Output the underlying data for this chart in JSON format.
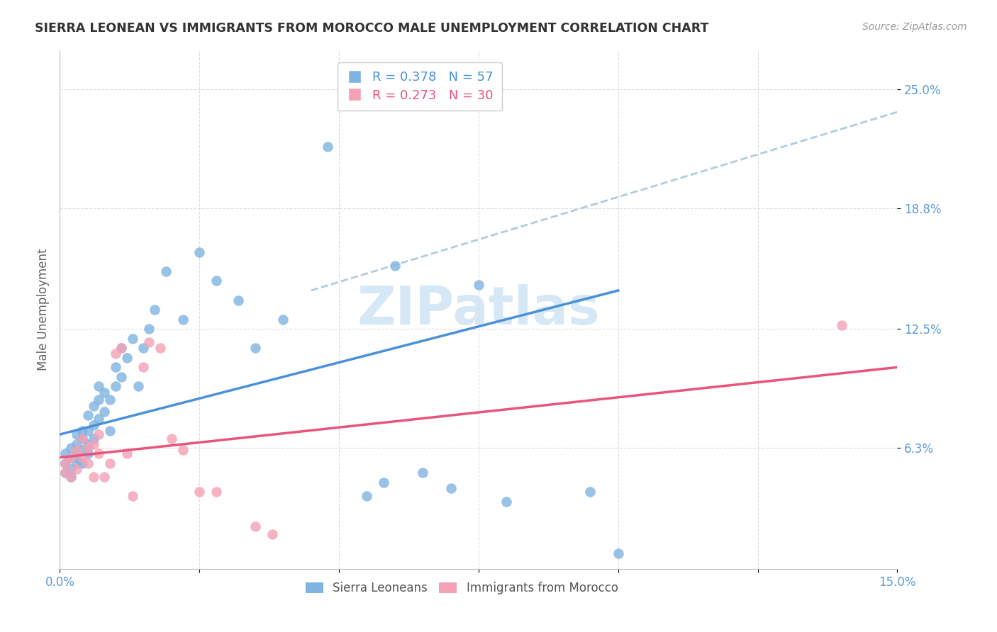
{
  "title": "SIERRA LEONEAN VS IMMIGRANTS FROM MOROCCO MALE UNEMPLOYMENT CORRELATION CHART",
  "source": "Source: ZipAtlas.com",
  "ylabel": "Male Unemployment",
  "ytick_labels": [
    "6.3%",
    "12.5%",
    "18.8%",
    "25.0%"
  ],
  "ytick_values": [
    0.063,
    0.125,
    0.188,
    0.25
  ],
  "xlim": [
    0.0,
    0.15
  ],
  "ylim": [
    0.0,
    0.27
  ],
  "color_blue": "#7EB4E2",
  "color_pink": "#F4A0B5",
  "color_trendline_blue": "#4A90D9",
  "color_trendline_pink": "#E8547A",
  "color_trendline_dashed": "#B0CCDD",
  "watermark_color": "#D6E8F5",
  "background_color": "#FFFFFF",
  "sl_x": [
    0.001,
    0.001,
    0.001,
    0.002,
    0.002,
    0.002,
    0.002,
    0.003,
    0.003,
    0.003,
    0.003,
    0.003,
    0.004,
    0.004,
    0.004,
    0.004,
    0.005,
    0.005,
    0.005,
    0.005,
    0.006,
    0.006,
    0.006,
    0.007,
    0.007,
    0.007,
    0.008,
    0.008,
    0.009,
    0.009,
    0.01,
    0.01,
    0.011,
    0.011,
    0.012,
    0.013,
    0.014,
    0.015,
    0.016,
    0.017,
    0.019,
    0.022,
    0.025,
    0.028,
    0.032,
    0.035,
    0.04,
    0.048,
    0.055,
    0.058,
    0.06,
    0.065,
    0.07,
    0.075,
    0.08,
    0.095,
    0.1
  ],
  "sl_y": [
    0.05,
    0.055,
    0.06,
    0.048,
    0.052,
    0.058,
    0.063,
    0.055,
    0.06,
    0.065,
    0.07,
    0.058,
    0.062,
    0.068,
    0.072,
    0.055,
    0.065,
    0.072,
    0.08,
    0.06,
    0.068,
    0.075,
    0.085,
    0.078,
    0.088,
    0.095,
    0.082,
    0.092,
    0.088,
    0.072,
    0.095,
    0.105,
    0.1,
    0.115,
    0.11,
    0.12,
    0.095,
    0.115,
    0.125,
    0.135,
    0.155,
    0.13,
    0.165,
    0.15,
    0.14,
    0.115,
    0.13,
    0.22,
    0.038,
    0.045,
    0.158,
    0.05,
    0.042,
    0.148,
    0.035,
    0.04,
    0.008
  ],
  "im_x": [
    0.001,
    0.001,
    0.002,
    0.002,
    0.003,
    0.003,
    0.004,
    0.004,
    0.005,
    0.005,
    0.006,
    0.006,
    0.007,
    0.007,
    0.008,
    0.009,
    0.01,
    0.011,
    0.012,
    0.013,
    0.015,
    0.016,
    0.018,
    0.02,
    0.022,
    0.025,
    0.028,
    0.035,
    0.038,
    0.14
  ],
  "im_y": [
    0.05,
    0.055,
    0.048,
    0.058,
    0.052,
    0.062,
    0.058,
    0.068,
    0.063,
    0.055,
    0.065,
    0.048,
    0.06,
    0.07,
    0.048,
    0.055,
    0.112,
    0.115,
    0.06,
    0.038,
    0.105,
    0.118,
    0.115,
    0.068,
    0.062,
    0.04,
    0.04,
    0.022,
    0.018,
    0.127
  ],
  "sl_trend_x0": 0.0,
  "sl_trend_y0": 0.07,
  "sl_trend_x1": 0.1,
  "sl_trend_y1": 0.145,
  "im_trend_x0": 0.0,
  "im_trend_y0": 0.058,
  "im_trend_x1": 0.15,
  "im_trend_y1": 0.105,
  "dash_trend_x0": 0.045,
  "dash_trend_y0": 0.145,
  "dash_trend_x1": 0.15,
  "dash_trend_y1": 0.238
}
